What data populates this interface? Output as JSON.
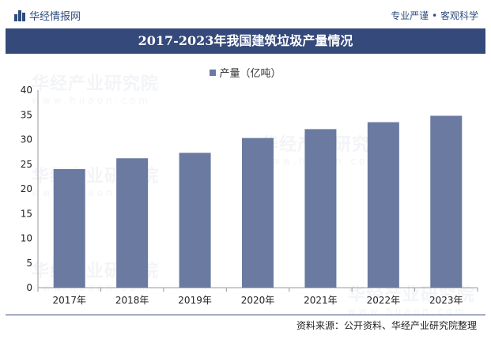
{
  "header": {
    "logo_text": "华经情报网",
    "logo_icon": "bar-logo-icon",
    "slogan": "专业严谨 • 客观科学"
  },
  "watermark": {
    "cn": "华经产业研究院",
    "en": "www.huaon.com"
  },
  "colors": {
    "title_bg": "#35497a",
    "bar": "#6a7aa0",
    "brand": "#2d4d7e"
  },
  "chart_data": {
    "type": "bar",
    "title": "2017-2023年我国建筑垃圾产量情况",
    "categories": [
      "2017年",
      "2018年",
      "2019年",
      "2020年",
      "2021年",
      "2022年",
      "2023年"
    ],
    "series": [
      {
        "name": "产量（亿吨）",
        "values": [
          24.0,
          26.2,
          27.3,
          30.3,
          32.1,
          33.5,
          34.8
        ]
      }
    ],
    "ylim": [
      0,
      40
    ],
    "yticks": [
      0,
      5,
      10,
      15,
      20,
      25,
      30,
      35,
      40
    ],
    "grid": false,
    "legend_position": "top-center"
  },
  "footer": {
    "source": "资料来源：公开资料、华经产业研究院整理"
  }
}
